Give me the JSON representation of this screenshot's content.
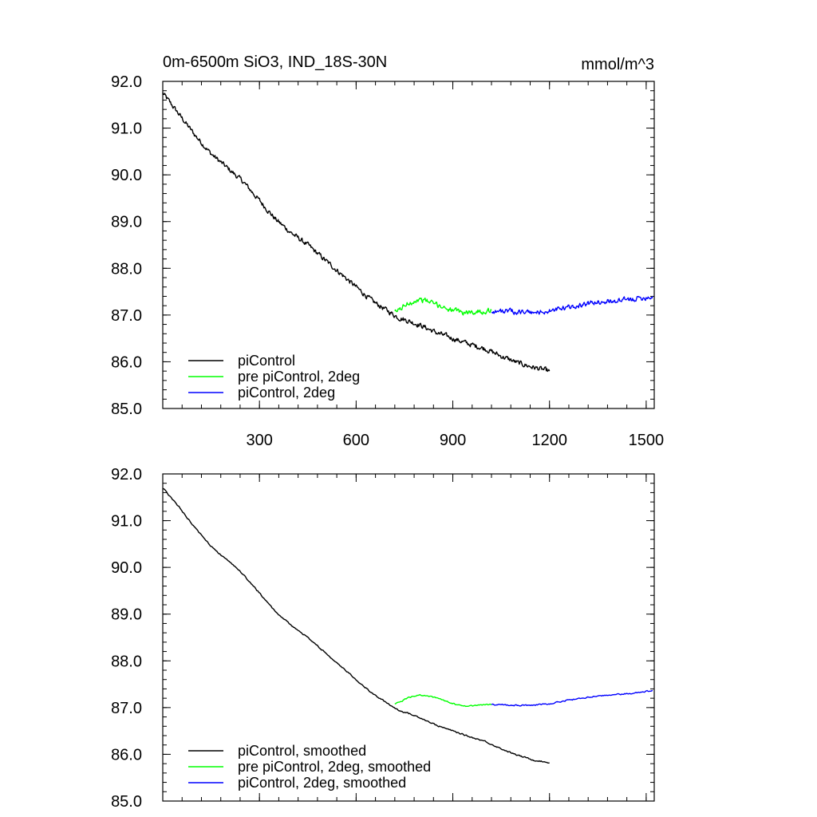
{
  "chart_data": [
    {
      "type": "line",
      "title": "0m-6500m SiO3, IND_18S-30N",
      "units": "mmol/m^3",
      "xlabel": "",
      "ylabel": "",
      "xlim": [
        0,
        1525
      ],
      "ylim": [
        85.0,
        92.0
      ],
      "x_ticks": [
        300,
        600,
        900,
        1200,
        1500
      ],
      "x_tick_labels": [
        "300",
        "600",
        "900",
        "1200",
        "1500"
      ],
      "y_ticks": [
        85.0,
        86.0,
        87.0,
        88.0,
        89.0,
        90.0,
        91.0,
        92.0
      ],
      "y_tick_labels": [
        "85.0",
        "86.0",
        "87.0",
        "88.0",
        "89.0",
        "90.0",
        "91.0",
        "92.0"
      ],
      "legend_position": "bottom-left",
      "smoothed": false,
      "series": [
        {
          "name": "piControl",
          "color": "#000000",
          "x": [
            0,
            50,
            100,
            150,
            200,
            250,
            300,
            350,
            400,
            450,
            500,
            550,
            600,
            650,
            700,
            730,
            760,
            800,
            850,
            900,
            950,
            1000,
            1050,
            1100,
            1150,
            1200
          ],
          "values": [
            91.75,
            91.3,
            90.85,
            90.45,
            90.15,
            89.85,
            89.45,
            89.05,
            88.75,
            88.5,
            88.2,
            87.9,
            87.6,
            87.3,
            87.08,
            86.95,
            86.88,
            86.78,
            86.62,
            86.5,
            86.38,
            86.28,
            86.12,
            85.98,
            85.88,
            85.8
          ]
        },
        {
          "name": "pre piControl, 2deg",
          "color": "#00ff00",
          "x": [
            720,
            740,
            760,
            780,
            800,
            820,
            850,
            880,
            910,
            940,
            970,
            1000,
            1020
          ],
          "values": [
            87.05,
            87.15,
            87.25,
            87.3,
            87.33,
            87.3,
            87.22,
            87.15,
            87.08,
            87.05,
            87.07,
            87.08,
            87.1
          ]
        },
        {
          "name": "piControl, 2deg",
          "color": "#0000ff",
          "x": [
            1020,
            1060,
            1100,
            1150,
            1200,
            1250,
            1300,
            1350,
            1400,
            1450,
            1500,
            1520
          ],
          "values": [
            87.08,
            87.08,
            87.07,
            87.05,
            87.08,
            87.15,
            87.22,
            87.28,
            87.3,
            87.33,
            87.38,
            87.4
          ]
        }
      ]
    },
    {
      "type": "line",
      "title": "",
      "xlabel": "",
      "ylabel": "",
      "xlim": [
        0,
        1525
      ],
      "ylim": [
        85.0,
        92.0
      ],
      "x_ticks": [
        300,
        600,
        900,
        1200,
        1500
      ],
      "y_ticks": [
        85.0,
        86.0,
        87.0,
        88.0,
        89.0,
        90.0,
        91.0,
        92.0
      ],
      "y_tick_labels": [
        "85.0",
        "86.0",
        "87.0",
        "88.0",
        "89.0",
        "90.0",
        "91.0",
        "92.0"
      ],
      "legend_position": "bottom-left",
      "smoothed": true,
      "series": [
        {
          "name": "piControl, smoothed",
          "color": "#000000",
          "x": [
            0,
            50,
            100,
            150,
            200,
            250,
            300,
            350,
            400,
            450,
            500,
            550,
            600,
            650,
            700,
            730,
            760,
            800,
            850,
            900,
            950,
            1000,
            1050,
            1100,
            1150,
            1200
          ],
          "values": [
            91.7,
            91.3,
            90.85,
            90.45,
            90.15,
            89.85,
            89.45,
            89.05,
            88.75,
            88.5,
            88.2,
            87.9,
            87.6,
            87.3,
            87.08,
            86.95,
            86.88,
            86.78,
            86.62,
            86.5,
            86.38,
            86.28,
            86.12,
            85.98,
            85.88,
            85.82
          ]
        },
        {
          "name": "pre piControl, 2deg, smoothed",
          "color": "#00ff00",
          "x": [
            720,
            740,
            760,
            780,
            800,
            820,
            850,
            880,
            910,
            940,
            970,
            1000,
            1020
          ],
          "values": [
            87.08,
            87.13,
            87.2,
            87.25,
            87.27,
            87.25,
            87.2,
            87.13,
            87.07,
            87.03,
            87.04,
            87.06,
            87.07
          ]
        },
        {
          "name": "piControl, 2deg, smoothed",
          "color": "#0000ff",
          "x": [
            1020,
            1060,
            1100,
            1150,
            1200,
            1250,
            1300,
            1350,
            1400,
            1450,
            1500,
            1520
          ],
          "values": [
            87.06,
            87.06,
            87.05,
            87.05,
            87.08,
            87.15,
            87.2,
            87.25,
            87.28,
            87.3,
            87.35,
            87.36
          ]
        }
      ]
    }
  ]
}
